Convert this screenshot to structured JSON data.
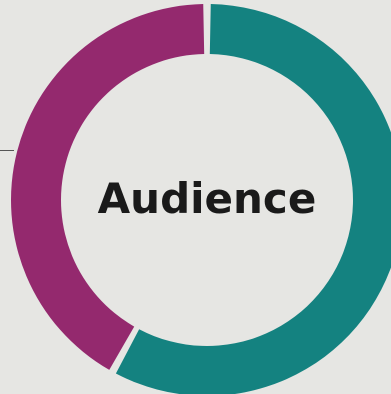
{
  "chart_data": {
    "type": "pie",
    "title": "",
    "center_label": "Audience",
    "slices": [
      {
        "value": 58,
        "color": "#148280"
      },
      {
        "value": 42,
        "color": "#94296e"
      }
    ]
  }
}
